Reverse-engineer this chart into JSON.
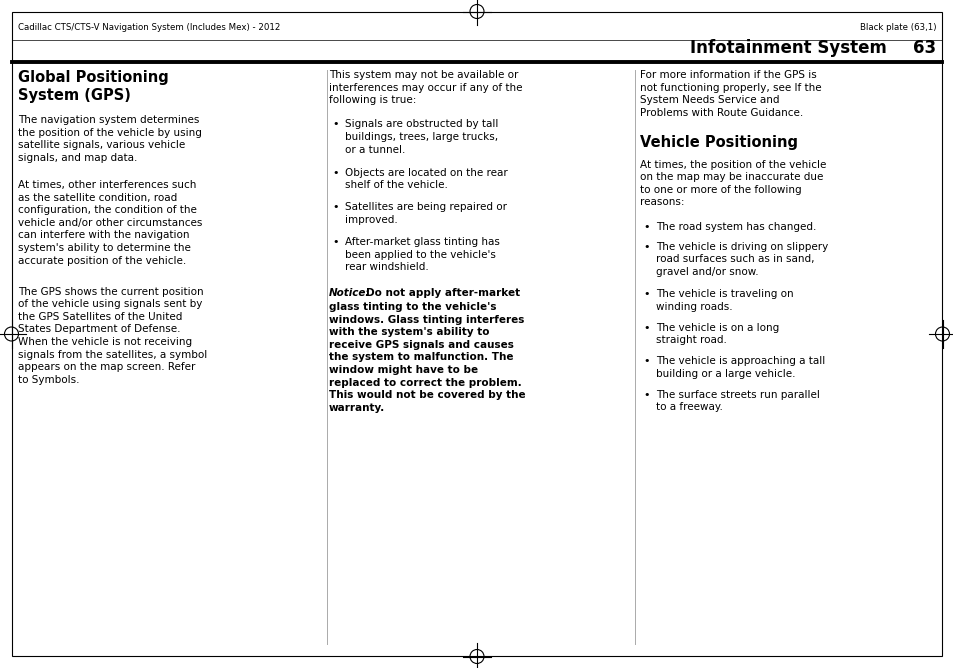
{
  "background_color": "#ffffff",
  "page_width": 9.54,
  "page_height": 6.68,
  "header_left": "Cadillac CTS/CTS-V Navigation System (Includes Mex) - 2012",
  "header_right": "Black plate (63,1)",
  "section_title": "Infotainment System",
  "page_number": "63",
  "col1_heading": "Global Positioning\nSystem (GPS)",
  "col1_para1": "The navigation system determines\nthe position of the vehicle by using\nsatellite signals, various vehicle\nsignals, and map data.",
  "col1_para2": "At times, other interferences such\nas the satellite condition, road\nconfiguration, the condition of the\nvehicle and/or other circumstances\ncan interfere with the navigation\nsystem's ability to determine the\naccurate position of the vehicle.",
  "col1_para3": "The GPS shows the current position\nof the vehicle using signals sent by\nthe GPS Satellites of the United\nStates Department of Defense.\nWhen the vehicle is not receiving\nsignals from the satellites, a symbol\nappears on the map screen. Refer\nto Symbols.",
  "col2_para1": "This system may not be available or\ninterferences may occur if any of the\nfollowing is true:",
  "col2_bullets": [
    "Signals are obstructed by tall\nbuildings, trees, large trucks,\nor a tunnel.",
    "Objects are located on the rear\nshelf of the vehicle.",
    "Satellites are being repaired or\nimproved.",
    "After-market glass tinting has\nbeen applied to the vehicle's\nrear windshield."
  ],
  "col2_notice_label": "Notice:",
  "col2_notice_body": "  Do not apply after-market\nglass tinting to the vehicle's\nwindows. Glass tinting interferes\nwith the system's ability to\nreceive GPS signals and causes\nthe system to malfunction. The\nwindow might have to be\nreplaced to correct the problem.\nThis would not be covered by the\nwarranty.",
  "col3_para1": "For more information if the GPS is\nnot functioning properly, see If the\nSystem Needs Service and\nProblems with Route Guidance.",
  "col3_heading": "Vehicle Positioning",
  "col3_para2": "At times, the position of the vehicle\non the map may be inaccurate due\nto one or more of the following\nreasons:",
  "col3_bullets": [
    "The road system has changed.",
    "The vehicle is driving on slippery\nroad surfaces such as in sand,\ngravel and/or snow.",
    "The vehicle is traveling on\nwinding roads.",
    "The vehicle is on a long\nstraight road.",
    "The vehicle is approaching a tall\nbuilding or a large vehicle.",
    "The surface streets run parallel\nto a freeway."
  ],
  "crosshair_color": "#000000",
  "border_color": "#000000",
  "text_color": "#000000",
  "divider_color": "#aaaaaa"
}
